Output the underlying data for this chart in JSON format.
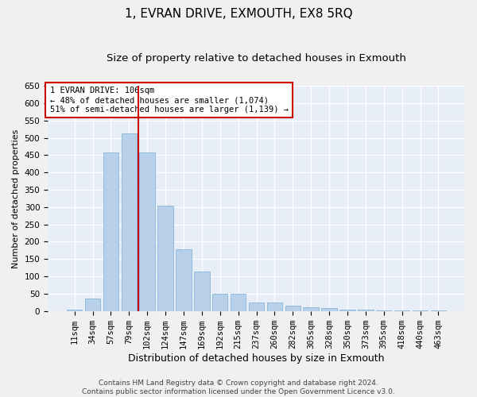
{
  "title": "1, EVRAN DRIVE, EXMOUTH, EX8 5RQ",
  "subtitle": "Size of property relative to detached houses in Exmouth",
  "xlabel": "Distribution of detached houses by size in Exmouth",
  "ylabel": "Number of detached properties",
  "categories": [
    "11sqm",
    "34sqm",
    "57sqm",
    "79sqm",
    "102sqm",
    "124sqm",
    "147sqm",
    "169sqm",
    "192sqm",
    "215sqm",
    "237sqm",
    "260sqm",
    "282sqm",
    "305sqm",
    "328sqm",
    "350sqm",
    "373sqm",
    "395sqm",
    "418sqm",
    "440sqm",
    "463sqm"
  ],
  "values": [
    5,
    35,
    458,
    512,
    458,
    305,
    178,
    115,
    50,
    50,
    25,
    25,
    15,
    10,
    8,
    5,
    3,
    2,
    2,
    1,
    1
  ],
  "bar_color": "#b8d0ea",
  "bar_edge_color": "#7aadd4",
  "background_color": "#e8eef8",
  "grid_color": "#ffffff",
  "vline_color": "#cc0000",
  "annotation_text": "1 EVRAN DRIVE: 106sqm\n← 48% of detached houses are smaller (1,074)\n51% of semi-detached houses are larger (1,139) →",
  "annotation_box_color": "#ffffff",
  "annotation_box_edge": "#cc0000",
  "ylim": [
    0,
    650
  ],
  "yticks": [
    0,
    50,
    100,
    150,
    200,
    250,
    300,
    350,
    400,
    450,
    500,
    550,
    600,
    650
  ],
  "footer_line1": "Contains HM Land Registry data © Crown copyright and database right 2024.",
  "footer_line2": "Contains public sector information licensed under the Open Government Licence v3.0.",
  "title_fontsize": 11,
  "subtitle_fontsize": 9.5,
  "xlabel_fontsize": 9,
  "ylabel_fontsize": 8,
  "tick_fontsize": 7.5,
  "footer_fontsize": 6.5,
  "fig_facecolor": "#f0f0f0"
}
